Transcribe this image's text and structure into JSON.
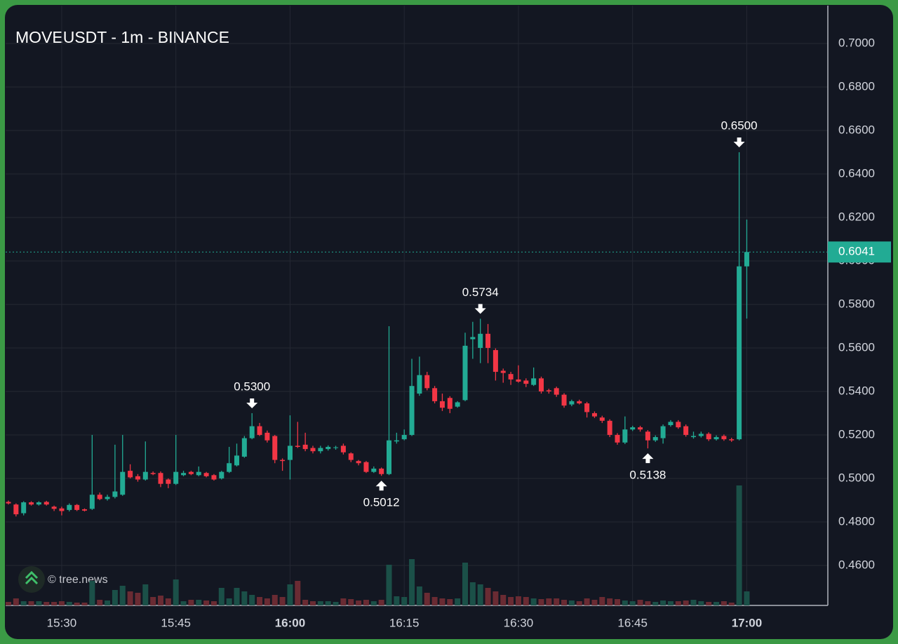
{
  "chart_data": {
    "type": "candlestick",
    "title": "MOVEUSDT - 1m - BINANCE",
    "watermark": "© tree.news",
    "categories": [
      "15:23",
      "15:24",
      "15:25",
      "15:26",
      "15:27",
      "15:28",
      "15:29",
      "15:30",
      "15:31",
      "15:32",
      "15:33",
      "15:34",
      "15:35",
      "15:36",
      "15:37",
      "15:38",
      "15:39",
      "15:40",
      "15:41",
      "15:42",
      "15:43",
      "15:44",
      "15:45",
      "15:46",
      "15:47",
      "15:48",
      "15:49",
      "15:50",
      "15:51",
      "15:52",
      "15:53",
      "15:54",
      "15:55",
      "15:56",
      "15:57",
      "15:58",
      "15:59",
      "16:00",
      "16:01",
      "16:02",
      "16:03",
      "16:04",
      "16:05",
      "16:06",
      "16:07",
      "16:08",
      "16:09",
      "16:10",
      "16:11",
      "16:12",
      "16:13",
      "16:14",
      "16:15",
      "16:16",
      "16:17",
      "16:18",
      "16:19",
      "16:20",
      "16:21",
      "16:22",
      "16:23",
      "16:24",
      "16:25",
      "16:26",
      "16:27",
      "16:28",
      "16:29",
      "16:30",
      "16:31",
      "16:32",
      "16:33",
      "16:34",
      "16:35",
      "16:36",
      "16:37",
      "16:38",
      "16:39",
      "16:40",
      "16:41",
      "16:42",
      "16:43",
      "16:44",
      "16:45",
      "16:46",
      "16:47",
      "16:48",
      "16:49",
      "16:50",
      "16:51",
      "16:52",
      "16:53",
      "16:54",
      "16:55",
      "16:56",
      "16:57",
      "16:58",
      "16:59",
      "17:00"
    ],
    "open": [
      0.4892,
      0.488,
      0.484,
      0.489,
      0.488,
      0.4892,
      0.487,
      0.4862,
      0.4855,
      0.4878,
      0.4858,
      0.486,
      0.4925,
      0.4905,
      0.4915,
      0.4925,
      0.5035,
      0.501,
      0.4995,
      0.5025,
      0.5025,
      0.4995,
      0.4975,
      0.5015,
      0.503,
      0.5015,
      0.5025,
      0.5015,
      0.5,
      0.503,
      0.506,
      0.51,
      0.5185,
      0.524,
      0.521,
      0.5195,
      0.5085,
      0.5085,
      0.515,
      0.5155,
      0.514,
      0.5125,
      0.5135,
      0.514,
      0.515,
      0.5115,
      0.508,
      0.5075,
      0.503,
      0.5045,
      0.502,
      0.517,
      0.518,
      0.52,
      0.539,
      0.5475,
      0.5415,
      0.5355,
      0.537,
      0.533,
      0.536,
      0.564,
      0.56,
      0.5665,
      0.559,
      0.5495,
      0.548,
      0.5455,
      0.545,
      0.543,
      0.546,
      0.5405,
      0.5415,
      0.5385,
      0.534,
      0.5355,
      0.5345,
      0.53,
      0.528,
      0.5265,
      0.52,
      0.5165,
      0.5225,
      0.5235,
      0.5215,
      0.5175,
      0.5185,
      0.5245,
      0.526,
      0.524,
      0.519,
      0.5195,
      0.5205,
      0.518,
      0.5195,
      0.518,
      0.518,
      0.5975
    ],
    "high": [
      0.4898,
      0.4885,
      0.4895,
      0.4895,
      0.4895,
      0.4897,
      0.4875,
      0.487,
      0.4885,
      0.4882,
      0.4862,
      0.52,
      0.4935,
      0.4925,
      0.5155,
      0.52,
      0.5065,
      0.502,
      0.517,
      0.5032,
      0.5032,
      0.5,
      0.52,
      0.5035,
      0.5035,
      0.5055,
      0.503,
      0.502,
      0.5035,
      0.5145,
      0.516,
      0.5195,
      0.53,
      0.5255,
      0.522,
      0.52,
      0.5092,
      0.529,
      0.526,
      0.521,
      0.515,
      0.515,
      0.5152,
      0.515,
      0.516,
      0.512,
      0.5085,
      0.508,
      0.5055,
      0.505,
      0.57,
      0.521,
      0.5225,
      0.555,
      0.556,
      0.549,
      0.5425,
      0.539,
      0.5378,
      0.5355,
      0.567,
      0.572,
      0.5734,
      0.571,
      0.5598,
      0.5505,
      0.549,
      0.552,
      0.546,
      0.551,
      0.5468,
      0.5412,
      0.5422,
      0.5392,
      0.5362,
      0.5362,
      0.5352,
      0.5308,
      0.5288,
      0.5272,
      0.5208,
      0.5285,
      0.5242,
      0.5242,
      0.5222,
      0.5198,
      0.5248,
      0.5268,
      0.5268,
      0.5248,
      0.5215,
      0.5215,
      0.5212,
      0.5198,
      0.5202,
      0.5187,
      0.65,
      0.619
    ],
    "low": [
      0.488,
      0.4825,
      0.483,
      0.4875,
      0.4875,
      0.4875,
      0.485,
      0.483,
      0.4848,
      0.485,
      0.4848,
      0.4855,
      0.49,
      0.4898,
      0.4908,
      0.492,
      0.5,
      0.4985,
      0.499,
      0.5015,
      0.496,
      0.4955,
      0.497,
      0.501,
      0.5015,
      0.501,
      0.5005,
      0.499,
      0.4995,
      0.5025,
      0.5055,
      0.5095,
      0.518,
      0.5195,
      0.5165,
      0.507,
      0.5035,
      0.4995,
      0.514,
      0.5125,
      0.5115,
      0.5115,
      0.5128,
      0.5132,
      0.511,
      0.5075,
      0.506,
      0.5025,
      0.5025,
      0.5012,
      0.5015,
      0.516,
      0.5175,
      0.5195,
      0.538,
      0.5405,
      0.5345,
      0.531,
      0.53,
      0.5325,
      0.5355,
      0.555,
      0.553,
      0.553,
      0.545,
      0.544,
      0.543,
      0.544,
      0.542,
      0.5425,
      0.539,
      0.539,
      0.5375,
      0.5325,
      0.5332,
      0.534,
      0.528,
      0.5278,
      0.5255,
      0.519,
      0.5155,
      0.5158,
      0.5218,
      0.5215,
      0.5138,
      0.5168,
      0.516,
      0.5238,
      0.5228,
      0.5192,
      0.5183,
      0.5188,
      0.5172,
      0.5174,
      0.5173,
      0.5168,
      0.5175,
      0.5735
    ],
    "close": [
      0.4885,
      0.4835,
      0.489,
      0.488,
      0.489,
      0.488,
      0.486,
      0.485,
      0.4878,
      0.4855,
      0.4852,
      0.4925,
      0.4905,
      0.4915,
      0.494,
      0.503,
      0.5005,
      0.4995,
      0.503,
      0.502,
      0.4975,
      0.4975,
      0.503,
      0.5025,
      0.502,
      0.503,
      0.501,
      0.4995,
      0.503,
      0.507,
      0.5105,
      0.5185,
      0.524,
      0.52,
      0.5175,
      0.5085,
      0.508,
      0.515,
      0.5145,
      0.5135,
      0.5125,
      0.514,
      0.5145,
      0.5143,
      0.512,
      0.5085,
      0.507,
      0.503,
      0.5045,
      0.502,
      0.5175,
      0.5175,
      0.52,
      0.5425,
      0.5475,
      0.5415,
      0.5355,
      0.5325,
      0.532,
      0.535,
      0.561,
      0.565,
      0.5665,
      0.56,
      0.549,
      0.5485,
      0.5455,
      0.5445,
      0.5435,
      0.546,
      0.54,
      0.54,
      0.5385,
      0.5335,
      0.5355,
      0.5345,
      0.5305,
      0.5285,
      0.5265,
      0.52,
      0.5165,
      0.5225,
      0.5235,
      0.5225,
      0.5175,
      0.519,
      0.524,
      0.526,
      0.5235,
      0.52,
      0.5195,
      0.5205,
      0.518,
      0.519,
      0.518,
      0.5175,
      0.5975,
      0.6041
    ],
    "volume": [
      5,
      10,
      6,
      6,
      6,
      5,
      5,
      6,
      5,
      4,
      4,
      35,
      8,
      7,
      22,
      28,
      20,
      18,
      30,
      12,
      14,
      10,
      37,
      6,
      8,
      8,
      7,
      6,
      25,
      10,
      25,
      20,
      15,
      12,
      10,
      15,
      12,
      30,
      35,
      8,
      6,
      6,
      6,
      5,
      10,
      9,
      7,
      8,
      6,
      8,
      58,
      13,
      12,
      66,
      27,
      18,
      12,
      10,
      9,
      10,
      61,
      33,
      30,
      25,
      20,
      15,
      12,
      13,
      12,
      10,
      9,
      10,
      10,
      8,
      7,
      6,
      10,
      8,
      12,
      10,
      9,
      7,
      6,
      8,
      6,
      5,
      7,
      6,
      6,
      7,
      8,
      6,
      5,
      5,
      6,
      4,
      171,
      20
    ],
    "up_color": "#22ab94",
    "down_color": "#f23645",
    "up_volume_color": "#1b5048",
    "down_volume_color": "#6a2b33",
    "ylim": [
      0.4416,
      0.7174
    ],
    "yticks": [
      {
        "value": 0.46,
        "label": "0.4600"
      },
      {
        "value": 0.48,
        "label": "0.4800"
      },
      {
        "value": 0.5,
        "label": "0.5000"
      },
      {
        "value": 0.52,
        "label": "0.5200"
      },
      {
        "value": 0.54,
        "label": "0.5400"
      },
      {
        "value": 0.56,
        "label": "0.5600"
      },
      {
        "value": 0.58,
        "label": "0.5800"
      },
      {
        "value": 0.6,
        "label": "0.6000"
      },
      {
        "value": 0.62,
        "label": "0.6200"
      },
      {
        "value": 0.64,
        "label": "0.6400"
      },
      {
        "value": 0.66,
        "label": "0.6600"
      },
      {
        "value": 0.68,
        "label": "0.6800"
      },
      {
        "value": 0.7,
        "label": "0.7000"
      }
    ],
    "xticks": [
      "15:30",
      "15:45",
      "16:00",
      "16:15",
      "16:30",
      "16:45",
      "17:00"
    ],
    "grid": true,
    "last_price": {
      "value": 0.6041,
      "label": "0.6041"
    },
    "annotations": [
      {
        "time": "15:55",
        "value": 0.53,
        "label": "0.5300",
        "kind": "high"
      },
      {
        "time": "16:12",
        "value": 0.5012,
        "label": "0.5012",
        "kind": "low"
      },
      {
        "time": "16:25",
        "value": 0.5734,
        "label": "0.5734",
        "kind": "high"
      },
      {
        "time": "16:47",
        "value": 0.5138,
        "label": "0.5138",
        "kind": "low"
      },
      {
        "time": "16:59",
        "value": 0.65,
        "label": "0.6500",
        "kind": "high"
      }
    ]
  }
}
